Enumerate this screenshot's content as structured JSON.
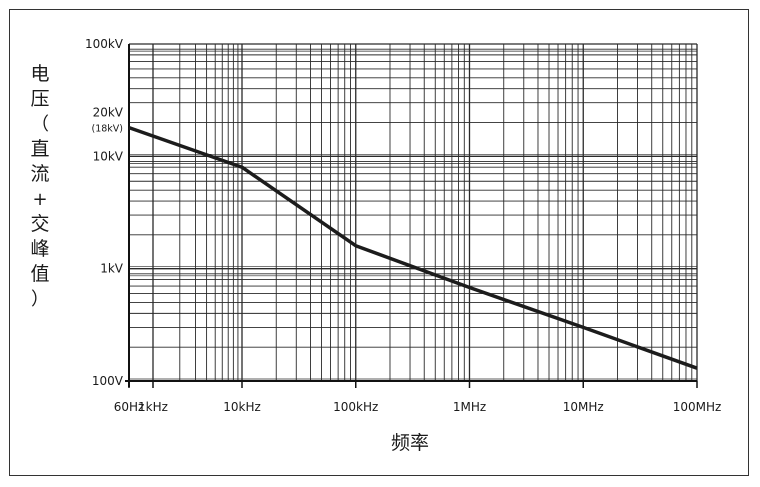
{
  "chart_data": {
    "type": "line",
    "title": "",
    "xlabel": "频率",
    "ylabel": "电压（直流+交峰值）",
    "x_scale": "log",
    "y_scale": "log",
    "xlim": [
      60,
      100000000
    ],
    "ylim": [
      100,
      100000
    ],
    "grid": true,
    "x_ticks": [
      {
        "value": 60,
        "label": "60Hz"
      },
      {
        "value": 1000,
        "label": "1kHz"
      },
      {
        "value": 10000,
        "label": "10kHz"
      },
      {
        "value": 100000,
        "label": "100kHz"
      },
      {
        "value": 1000000,
        "label": "1MHz"
      },
      {
        "value": 10000000,
        "label": "10MHz"
      },
      {
        "value": 100000000,
        "label": "100MHz"
      }
    ],
    "y_ticks": [
      {
        "value": 100,
        "label": "100V"
      },
      {
        "value": 1000,
        "label": "1kV"
      },
      {
        "value": 10000,
        "label": "10kV"
      },
      {
        "value": 20000,
        "label": "20kV"
      },
      {
        "value": 100000,
        "label": "100kV"
      }
    ],
    "annotations": [
      {
        "text": "(18kV)",
        "at_y": 18000
      }
    ],
    "series": [
      {
        "x": [
          60,
          10000,
          100000,
          1000000,
          10000000,
          100000000
        ],
        "y": [
          18000,
          8000,
          1600,
          680,
          300,
          130
        ]
      }
    ]
  },
  "colors": {
    "line": "#1c1c1c",
    "grid": "#2a2a2a",
    "axis": "#111111"
  }
}
